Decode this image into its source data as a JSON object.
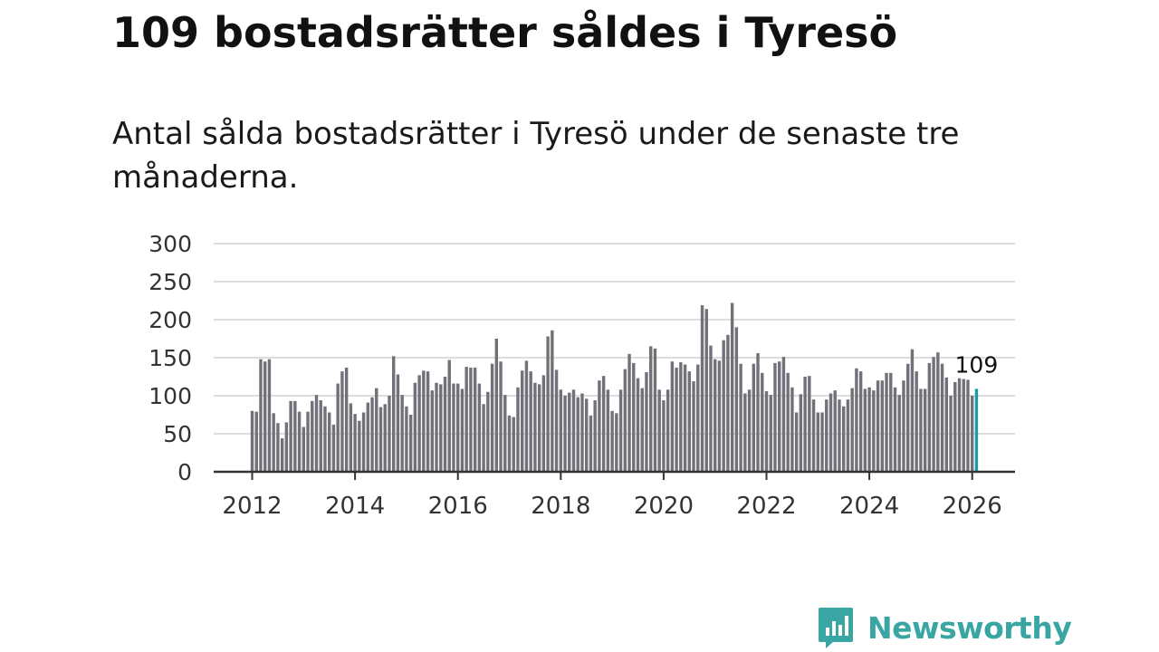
{
  "header": {
    "title": "109 bostadsrätter såldes i Tyresö",
    "subtitle": "Antal sålda bostadsrätter i Tyresö under de senaste tre månaderna."
  },
  "brand": {
    "name": "Newsworthy",
    "color": "#3aa6a3"
  },
  "colors": {
    "bar": "#727179",
    "highlight": "#159fa3",
    "grid": "#dddddd",
    "axis": "#333333"
  },
  "chart_data": {
    "type": "bar",
    "title": "109 bostadsrätter såldes i Tyresö",
    "xlabel": "",
    "ylabel": "",
    "ylim": [
      0,
      300
    ],
    "y_ticks": [
      "0",
      "50",
      "100",
      "150",
      "200",
      "250",
      "300"
    ],
    "x_ticks": [
      "2012",
      "2014",
      "2016",
      "2018",
      "2020",
      "2022",
      "2024",
      "2026"
    ],
    "grid": true,
    "start": "2012-01",
    "last_label": "109",
    "values": [
      80,
      79,
      148,
      145,
      148,
      77,
      64,
      44,
      65,
      93,
      93,
      79,
      59,
      79,
      93,
      101,
      94,
      86,
      78,
      62,
      116,
      132,
      137,
      90,
      76,
      67,
      78,
      91,
      98,
      110,
      85,
      89,
      100,
      152,
      128,
      101,
      86,
      75,
      117,
      127,
      133,
      132,
      107,
      117,
      115,
      125,
      147,
      116,
      116,
      109,
      138,
      137,
      137,
      116,
      89,
      105,
      142,
      175,
      145,
      101,
      74,
      72,
      111,
      133,
      146,
      132,
      117,
      115,
      127,
      178,
      186,
      134,
      108,
      100,
      104,
      108,
      98,
      103,
      96,
      74,
      94,
      120,
      126,
      108,
      80,
      77,
      108,
      135,
      155,
      143,
      123,
      110,
      131,
      165,
      162,
      108,
      94,
      108,
      145,
      137,
      144,
      141,
      132,
      119,
      141,
      219,
      214,
      166,
      148,
      146,
      173,
      180,
      222,
      190,
      142,
      103,
      108,
      142,
      156,
      130,
      106,
      101,
      143,
      145,
      151,
      130,
      111,
      78,
      102,
      125,
      126,
      95,
      78,
      78,
      95,
      103,
      107,
      95,
      86,
      95,
      110,
      136,
      132,
      109,
      111,
      107,
      120,
      120,
      130,
      130,
      111,
      101,
      120,
      142,
      161,
      132,
      109,
      109,
      143,
      151,
      157,
      142,
      124,
      100,
      118,
      123,
      122,
      121,
      100,
      109
    ]
  }
}
